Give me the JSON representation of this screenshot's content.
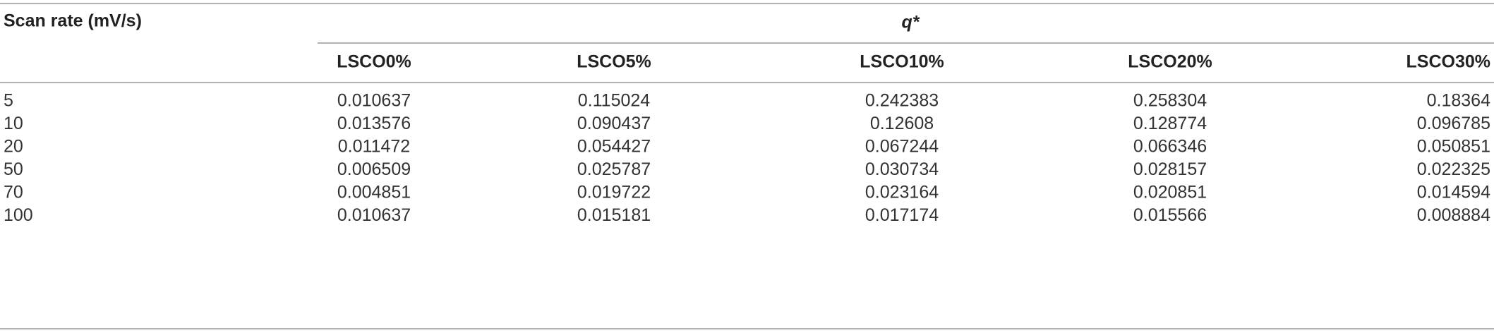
{
  "table": {
    "row_header": "Scan rate (mV/s)",
    "group_header": "q*",
    "columns": [
      "LSCO0%",
      "LSCO5%",
      "LSCO10%",
      "LSCO20%",
      "LSCO30%"
    ],
    "rows": [
      [
        "5",
        "0.010637",
        "0.115024",
        "0.242383",
        "0.258304",
        "0.18364"
      ],
      [
        "10",
        "0.013576",
        "0.090437",
        "0.12608",
        "0.128774",
        "0.096785"
      ],
      [
        "20",
        "0.011472",
        "0.054427",
        "0.067244",
        "0.066346",
        "0.050851"
      ],
      [
        "50",
        "0.006509",
        "0.025787",
        "0.030734",
        "0.028157",
        "0.022325"
      ],
      [
        "70",
        "0.004851",
        "0.019722",
        "0.023164",
        "0.020851",
        "0.014594"
      ],
      [
        "100",
        "0.010637",
        "0.015181",
        "0.017174",
        "0.015566",
        "0.008884"
      ]
    ]
  }
}
